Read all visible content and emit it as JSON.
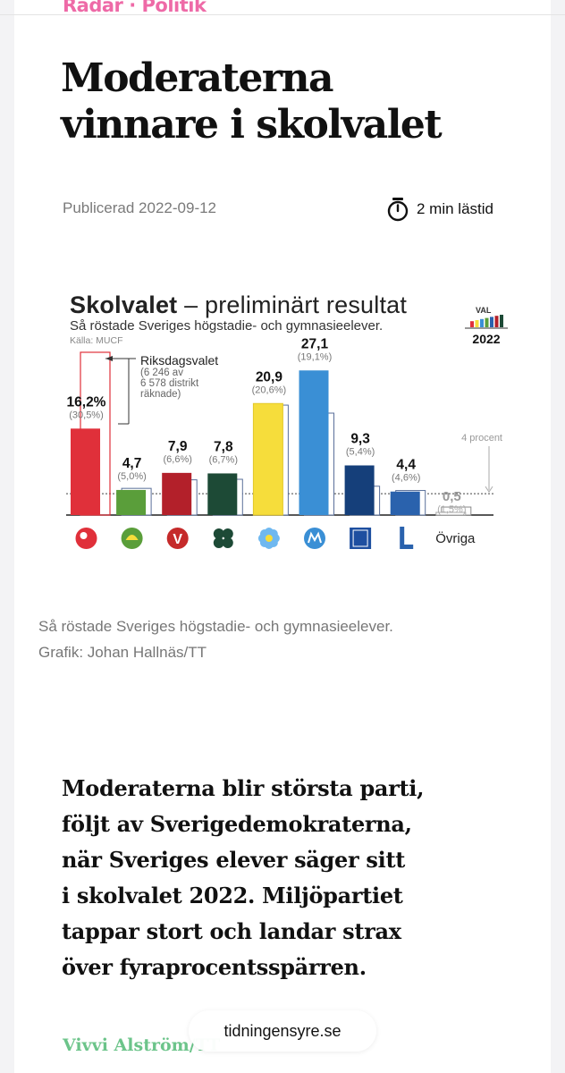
{
  "article": {
    "kicker": "Radar · Politik",
    "title_line1": "Moderaterna",
    "title_line2": "vinnare i skolvalet",
    "published": "Publicerad 2022-09-12",
    "read_time": "2 min lästid",
    "caption_line1": "Så röstade Sveriges högstadie- och gymnasieelever.",
    "caption_line2": "Grafik: Johan Hallnäs/TT",
    "lead_lines": [
      "Moderaterna blir största parti,",
      "följt av Sverigedemokraterna,",
      "när Sveriges elever säger sitt",
      "i skolvalet 2022. Miljöpartiet",
      "tappar stort och landar strax",
      "över fyraprocentsspärren."
    ],
    "byline": "Vivvi Alström/TT"
  },
  "browser": {
    "url": "tidningensyre.se"
  },
  "chart_data": {
    "type": "bar",
    "title_bold": "Skolvalet",
    "title_rest": " – preliminärt resultat",
    "subtitle": "Så röstade Sveriges högstadie- och gymnasieelever.",
    "source": "Källa: MUCF",
    "badge_top": "VAL",
    "badge_year": "2022",
    "annotation": [
      "Riksdagsvalet",
      "(6 246 av",
      "6 578 distrikt",
      "räknade)"
    ],
    "threshold_label": "4 procent",
    "threshold": 4,
    "ylim": [
      0,
      31
    ],
    "categories": [
      "S",
      "C",
      "V",
      "M",
      "MP",
      "SD",
      "KD",
      "L",
      "Övriga"
    ],
    "other_label": "Övriga",
    "series": [
      {
        "name": "",
        "values": [
          16.2,
          4.7,
          7.9,
          7.8,
          20.9,
          27.1,
          9.3,
          4.4,
          0.5
        ]
      },
      {
        "name": "Riksdagsvalet",
        "values": [
          30.5,
          5.0,
          6.6,
          6.7,
          20.6,
          19.1,
          5.4,
          4.6,
          1.5
        ]
      }
    ],
    "value_labels": [
      "16,2%",
      "4,7",
      "7,9",
      "7,8",
      "20,9",
      "27,1",
      "9,3",
      "4,4",
      "0,5"
    ],
    "compare_labels": [
      "(30,5%)",
      "(5,0%)",
      "(6,6%)",
      "(6,7%)",
      "(20,6%)",
      "(19,1%)",
      "(5,4%)",
      "(4,6%)",
      "(1,5%)"
    ],
    "colors": [
      "#e0303a",
      "#5a9e3a",
      "#b3202a",
      "#1d4a36",
      "#f6dd3b",
      "#3a8fd5",
      "#153f7a",
      "#2a62ad",
      "#ffffff"
    ]
  }
}
